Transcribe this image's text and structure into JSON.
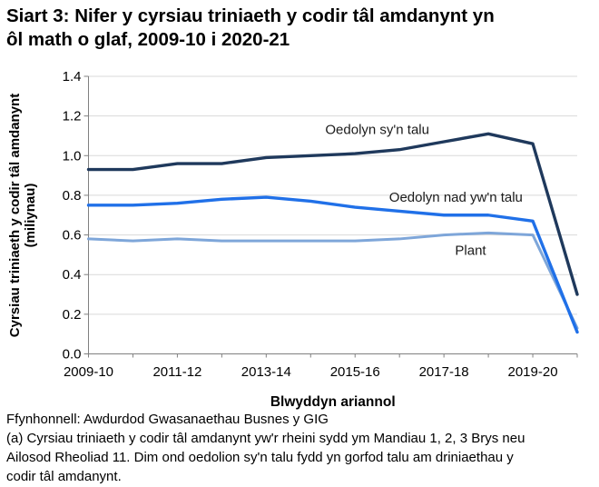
{
  "title": {
    "line1": "Siart 3: Nifer y cyrsiau triniaeth y codir tâl amdanynt yn",
    "line2": "ôl math o glaf, 2009-10 i 2020-21",
    "full": "Siart 3: Nifer y cyrsiau triniaeth y codir tâl amdanynt yn ôl math o glaf, 2009-10 i 2020-21"
  },
  "chart_data": {
    "type": "line",
    "categories": [
      "2009-10",
      "2010-11",
      "2011-12",
      "2012-13",
      "2013-14",
      "2014-15",
      "2015-16",
      "2016-17",
      "2017-18",
      "2018-19",
      "2019-20",
      "2020-21"
    ],
    "xtick_labels": [
      "2009-10",
      "2011-12",
      "2013-14",
      "2015-16",
      "2017-18",
      "2019-20"
    ],
    "xlabel": "Blwyddyn ariannol",
    "ylabel_line1": "Cyrsiau triniaeth y codir tâl amdanynt",
    "ylabel_line2": "(miliynau)",
    "ylim": [
      0.0,
      1.4
    ],
    "ytick_step": 0.2,
    "grid": true,
    "series": [
      {
        "name": "Oedolyn sy'n talu",
        "color": "#1f395c",
        "values": [
          0.93,
          0.93,
          0.96,
          0.96,
          0.99,
          1.0,
          1.01,
          1.03,
          1.07,
          1.11,
          1.06,
          0.3
        ]
      },
      {
        "name": "Oedolyn nad yw'n talu",
        "color": "#2070e8",
        "values": [
          0.75,
          0.75,
          0.76,
          0.78,
          0.79,
          0.77,
          0.74,
          0.72,
          0.7,
          0.7,
          0.67,
          0.11
        ]
      },
      {
        "name": "Plant",
        "color": "#7ea6d9",
        "values": [
          0.58,
          0.57,
          0.58,
          0.57,
          0.57,
          0.57,
          0.57,
          0.58,
          0.6,
          0.61,
          0.6,
          0.13
        ]
      }
    ],
    "annotations": [
      {
        "series": 0,
        "xi": 6.5,
        "y": 1.108
      },
      {
        "series": 1,
        "xi": 8.27,
        "y": 0.768
      },
      {
        "series": 2,
        "xi": 8.6,
        "y": 0.5
      }
    ],
    "colors": {
      "axis": "#808080",
      "grid": "#d9d9d9",
      "text": "#000000",
      "annotation": "#1a1a1a"
    }
  },
  "footer": {
    "source": "Ffynhonnell: Awdurdod Gwasanaethau Busnes y GIG",
    "note_lines": [
      "(a) Cyrsiau triniaeth y codir tâl amdanynt yw'r rheini sydd ym Mandiau 1, 2, 3 Brys neu",
      "Ailosod Rheoliad 11. Dim ond oedolion sy'n talu fydd yn gorfod talu am driniaethau y",
      "codir tâl amdanynt."
    ]
  }
}
